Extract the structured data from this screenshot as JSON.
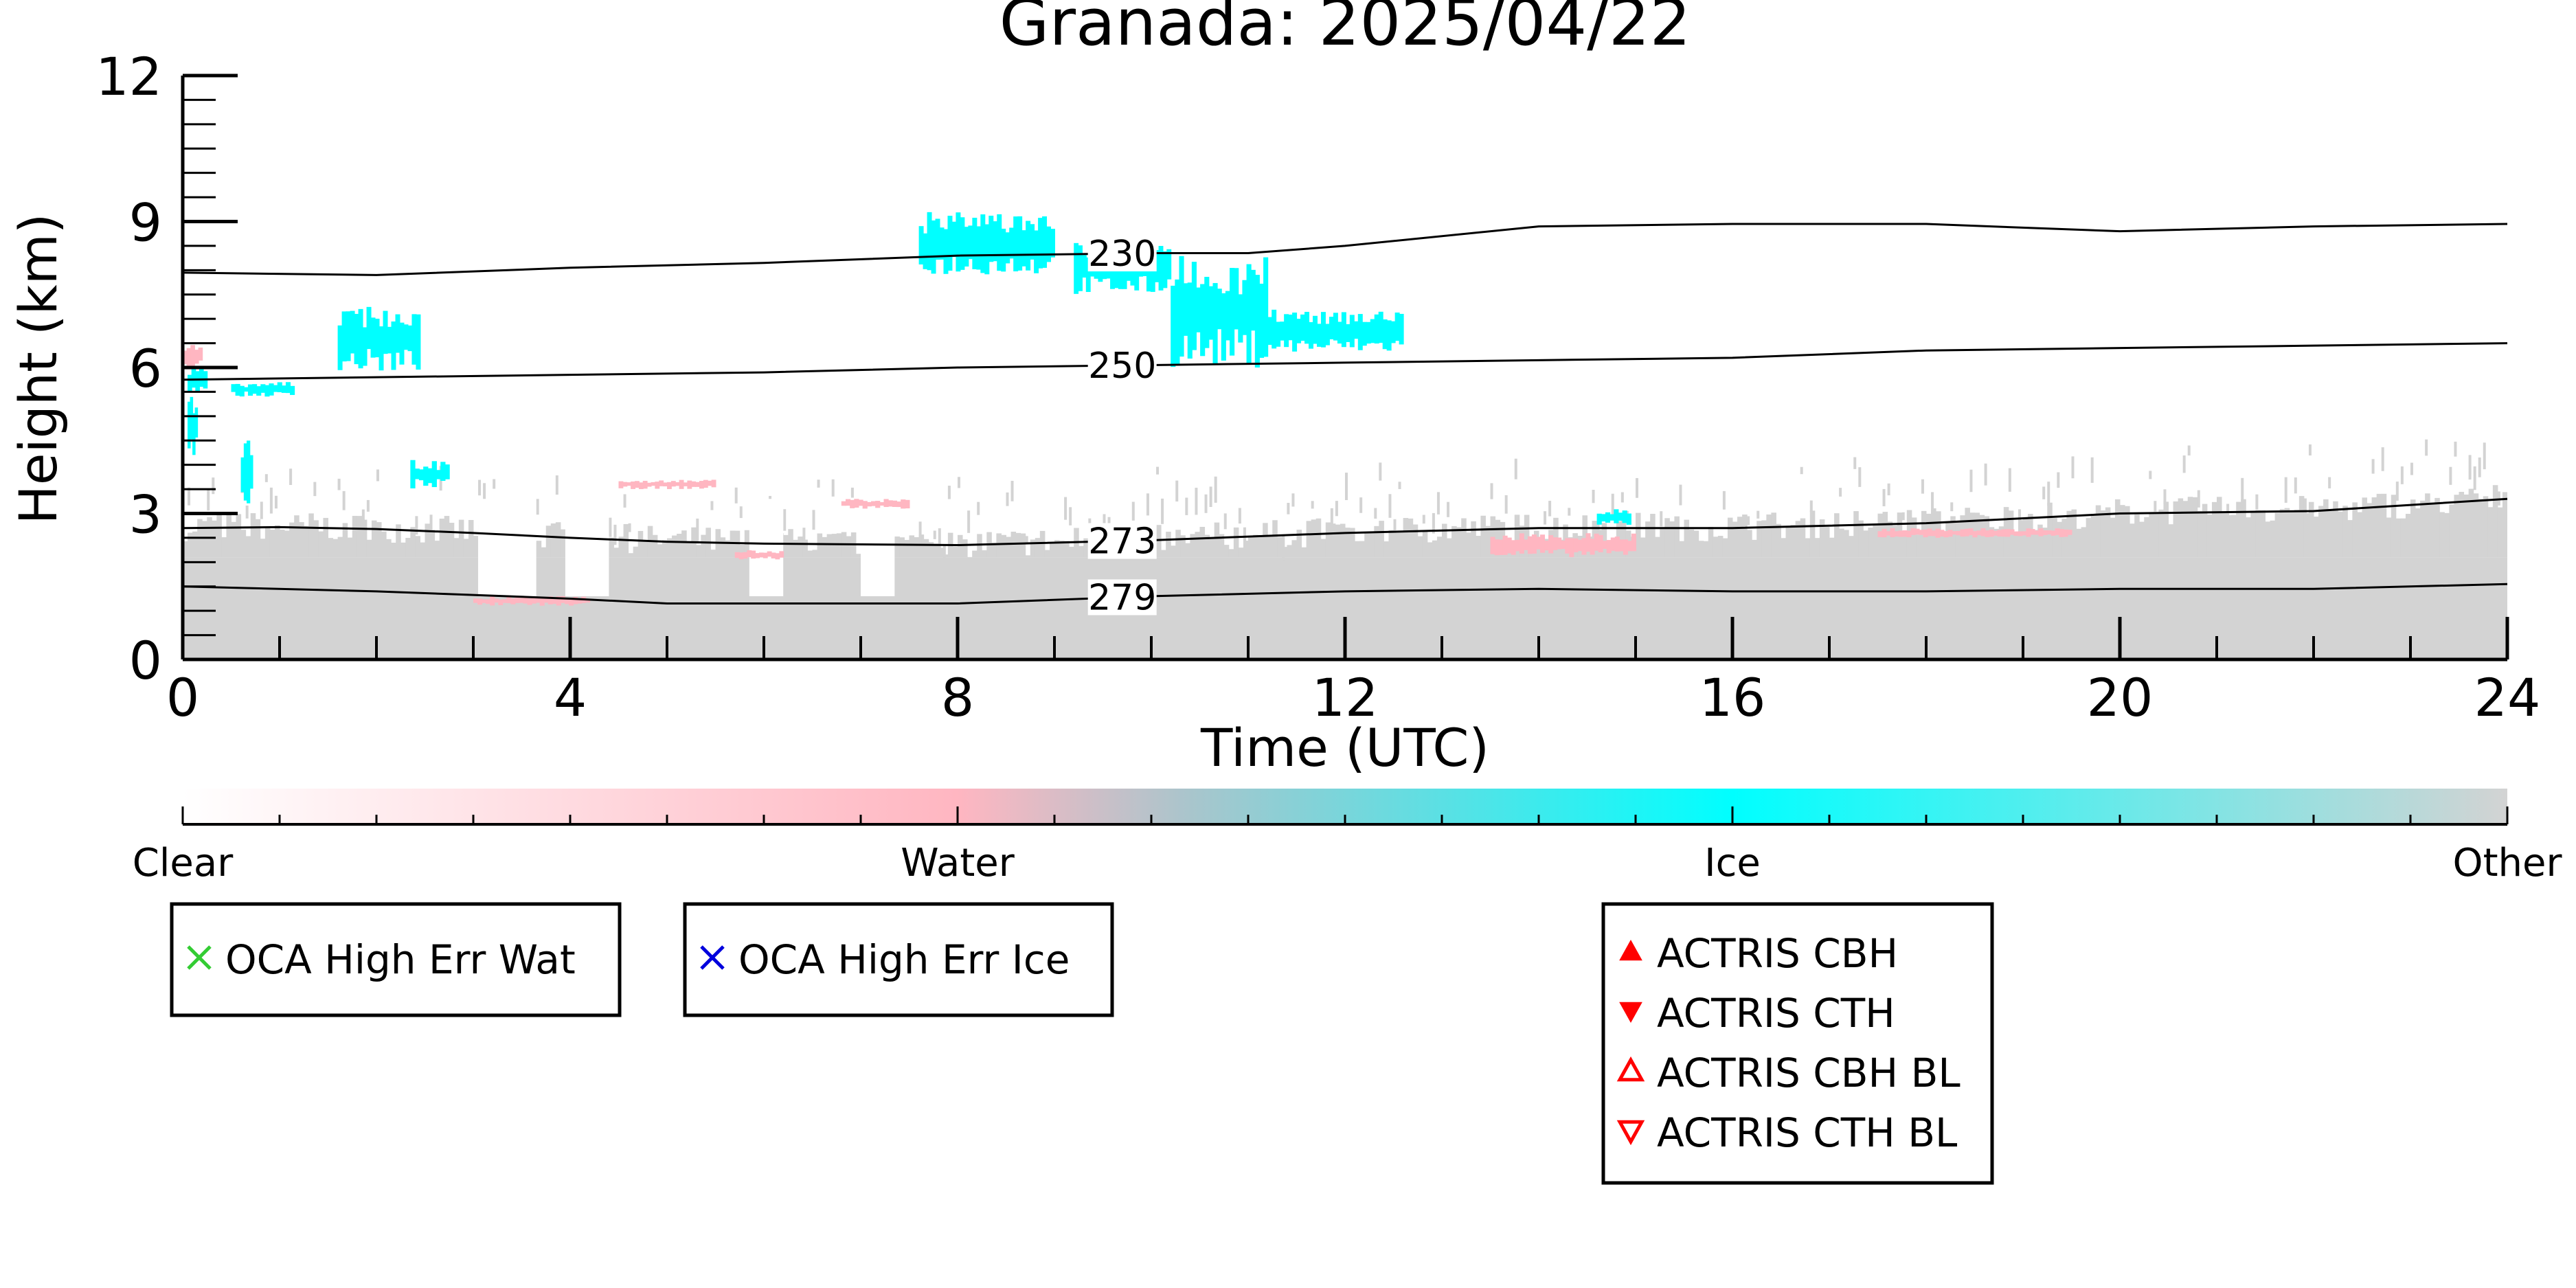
{
  "chart_data": {
    "type": "heatmap",
    "title": "Granada: 2025/04/22",
    "xlabel": "Time (UTC)",
    "ylabel": "Height (km)",
    "xlim": [
      0,
      24
    ],
    "ylim": [
      0,
      12
    ],
    "x_ticks": [
      "0",
      "4",
      "8",
      "12",
      "16",
      "20",
      "24"
    ],
    "x_tick_values": [
      0,
      4,
      8,
      12,
      16,
      20,
      24
    ],
    "y_ticks": [
      "0",
      "3",
      "6",
      "9",
      "12"
    ],
    "y_tick_values": [
      0,
      3,
      6,
      9,
      12
    ],
    "grid": false,
    "categories": [
      {
        "name": "Clear",
        "color": "#ffffff"
      },
      {
        "name": "Water",
        "color": "#ffb6c1"
      },
      {
        "name": "Ice",
        "color": "#00ffff"
      },
      {
        "name": "Other",
        "color": "#d3d3d3"
      }
    ],
    "colorbar": {
      "labels": [
        "Clear",
        "Water",
        "Ice",
        "Other"
      ],
      "positions": [
        0,
        1,
        2,
        3
      ]
    },
    "temperature_contours": [
      {
        "label": "230",
        "label_x": 9.7,
        "x": [
          0,
          2,
          4,
          6,
          8,
          10,
          11,
          12,
          14,
          16,
          18,
          20,
          22,
          24
        ],
        "y": [
          7.95,
          7.9,
          8.05,
          8.15,
          8.3,
          8.35,
          8.35,
          8.5,
          8.9,
          8.95,
          8.95,
          8.8,
          8.9,
          8.95
        ]
      },
      {
        "label": "250",
        "label_x": 9.7,
        "x": [
          0,
          2,
          4,
          6,
          8,
          10,
          12,
          14,
          16,
          18,
          20,
          22,
          24
        ],
        "y": [
          5.75,
          5.8,
          5.85,
          5.9,
          6.0,
          6.05,
          6.1,
          6.15,
          6.2,
          6.35,
          6.4,
          6.45,
          6.5
        ]
      },
      {
        "label": "273",
        "label_x": 9.7,
        "x": [
          0,
          1,
          2,
          3,
          4,
          5,
          6,
          8,
          10,
          12,
          14,
          16,
          18,
          20,
          22,
          24
        ],
        "y": [
          2.7,
          2.72,
          2.68,
          2.6,
          2.5,
          2.42,
          2.38,
          2.35,
          2.45,
          2.6,
          2.7,
          2.7,
          2.8,
          3.0,
          3.05,
          3.3
        ]
      },
      {
        "label": "279",
        "label_x": 9.7,
        "x": [
          0,
          2,
          4,
          5,
          6,
          8,
          10,
          12,
          14,
          16,
          18,
          20,
          22,
          24
        ],
        "y": [
          1.5,
          1.4,
          1.25,
          1.15,
          1.15,
          1.15,
          1.3,
          1.4,
          1.45,
          1.4,
          1.4,
          1.45,
          1.45,
          1.55
        ]
      }
    ],
    "cloud_patches": [
      {
        "class": "Ice",
        "x": [
          0.05,
          0.25
        ],
        "y": [
          5.5,
          6.0
        ]
      },
      {
        "class": "Ice",
        "x": [
          0.05,
          0.15
        ],
        "y": [
          4.2,
          5.5
        ]
      },
      {
        "class": "Ice",
        "x": [
          0.5,
          1.15
        ],
        "y": [
          5.4,
          5.7
        ]
      },
      {
        "class": "Ice",
        "x": [
          0.6,
          0.72
        ],
        "y": [
          3.2,
          4.6
        ]
      },
      {
        "class": "Ice",
        "x": [
          1.6,
          2.45
        ],
        "y": [
          5.9,
          7.3
        ]
      },
      {
        "class": "Ice",
        "x": [
          2.35,
          2.75
        ],
        "y": [
          3.5,
          4.1
        ]
      },
      {
        "class": "Ice",
        "x": [
          7.6,
          9.0
        ],
        "y": [
          7.9,
          9.2
        ]
      },
      {
        "class": "Ice",
        "x": [
          9.2,
          10.2
        ],
        "y": [
          7.5,
          8.6
        ]
      },
      {
        "class": "Ice",
        "x": [
          10.2,
          11.2
        ],
        "y": [
          6.0,
          8.3
        ]
      },
      {
        "class": "Ice",
        "x": [
          11.2,
          12.6
        ],
        "y": [
          6.3,
          7.2
        ]
      },
      {
        "class": "Ice",
        "x": [
          14.6,
          14.95
        ],
        "y": [
          2.75,
          3.1
        ]
      },
      {
        "class": "Water",
        "x": [
          0.0,
          0.2
        ],
        "y": [
          6.0,
          6.5
        ]
      },
      {
        "class": "Water",
        "x": [
          3.0,
          4.2
        ],
        "y": [
          1.1,
          1.3
        ]
      },
      {
        "class": "Water",
        "x": [
          4.5,
          5.5
        ],
        "y": [
          3.5,
          3.7
        ]
      },
      {
        "class": "Water",
        "x": [
          5.7,
          6.2
        ],
        "y": [
          2.05,
          2.25
        ]
      },
      {
        "class": "Water",
        "x": [
          6.8,
          7.5
        ],
        "y": [
          3.1,
          3.3
        ]
      },
      {
        "class": "Water",
        "x": [
          13.5,
          15.0
        ],
        "y": [
          2.1,
          2.6
        ]
      },
      {
        "class": "Water",
        "x": [
          17.5,
          19.5
        ],
        "y": [
          2.5,
          2.7
        ]
      }
    ],
    "legends": [
      {
        "entries": [
          {
            "label": "OCA High Err Wat",
            "marker": "x",
            "color": "#33cc33"
          }
        ]
      },
      {
        "entries": [
          {
            "label": "OCA High Err Ice",
            "marker": "x",
            "color": "#0000dd"
          }
        ]
      },
      {
        "entries": [
          {
            "label": "ACTRIS CBH",
            "marker": "triangle-up-filled",
            "color": "#ff0000"
          },
          {
            "label": "ACTRIS CTH",
            "marker": "triangle-down-filled",
            "color": "#ff0000"
          },
          {
            "label": "ACTRIS CBH BL",
            "marker": "triangle-up-open",
            "color": "#ff0000"
          },
          {
            "label": "ACTRIS CTH BL",
            "marker": "triangle-down-open",
            "color": "#ff0000"
          }
        ]
      }
    ]
  }
}
